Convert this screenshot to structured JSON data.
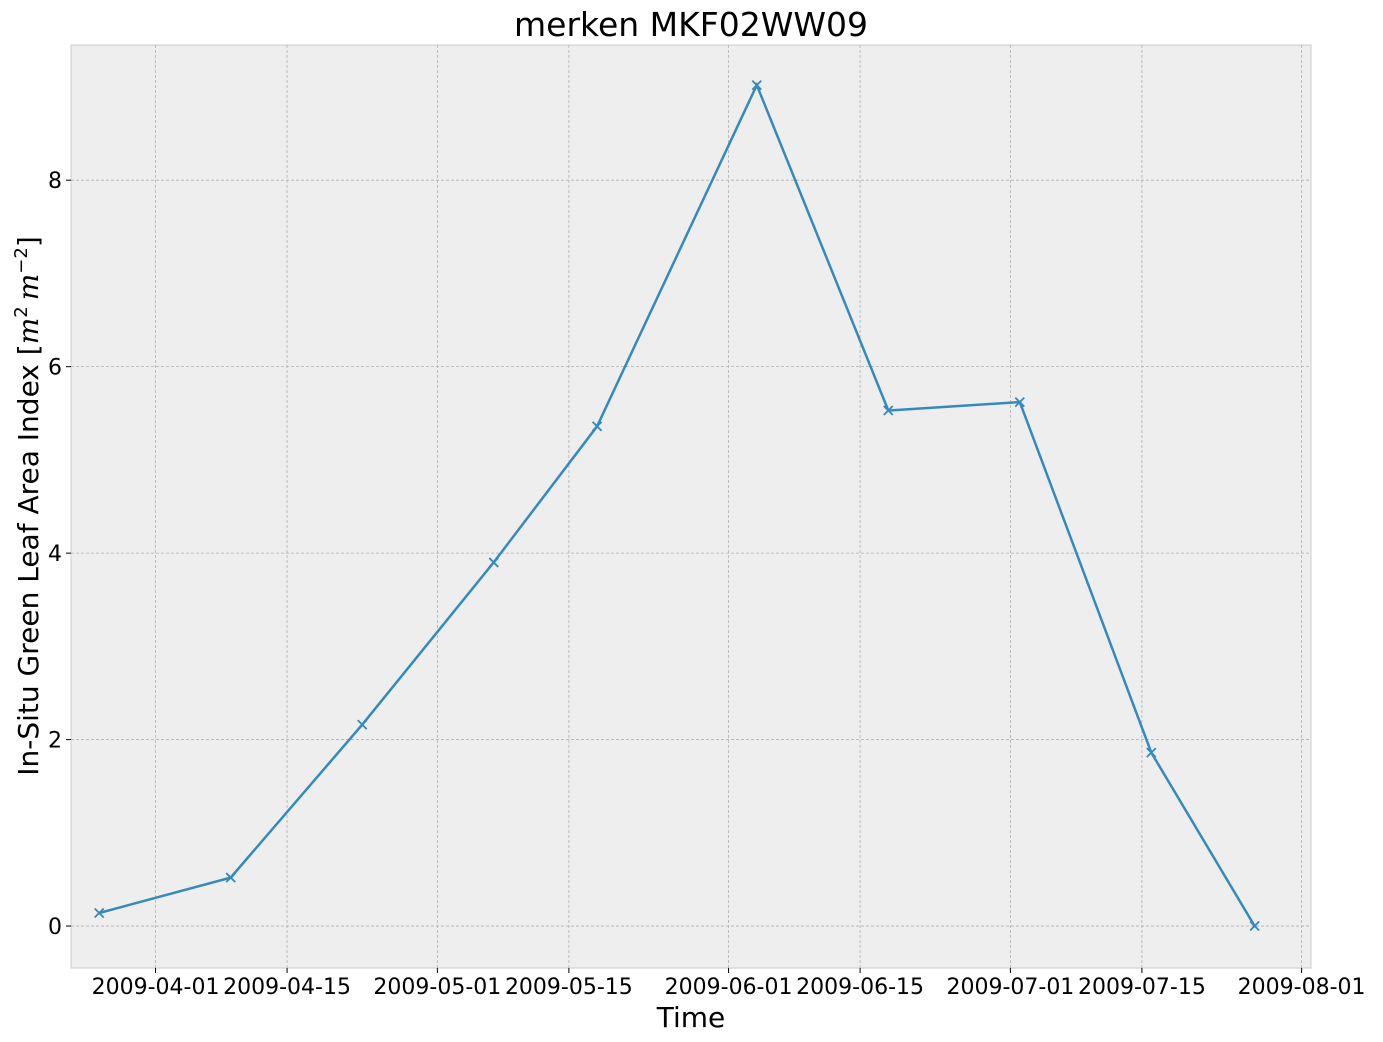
{
  "chart_data": {
    "type": "line",
    "title": "merken MKF02WW09",
    "xlabel": "Time",
    "ylabel": "In-Situ Green Leaf Area Index [m² m⁻²]",
    "ylabel_text": "In-Situ Green Leaf Area Index [",
    "ylabel_unit_m": "m",
    "ylabel_unit_exp1": "2",
    "ylabel_unit_exp2": "−2",
    "ylabel_close": "]",
    "xlim": [
      "2009-03-23",
      "2009-08-02"
    ],
    "ylim": [
      -0.45,
      9.45
    ],
    "x_ticks": [
      "2009-04-01",
      "2009-04-15",
      "2009-05-01",
      "2009-05-15",
      "2009-06-01",
      "2009-06-15",
      "2009-07-01",
      "2009-07-15",
      "2009-08-01"
    ],
    "y_ticks": [
      0,
      2,
      4,
      6,
      8
    ],
    "grid": true,
    "series": [
      {
        "x": [
          "2009-03-26",
          "2009-04-09",
          "2009-04-23",
          "2009-05-07",
          "2009-05-18",
          "2009-06-04",
          "2009-06-18",
          "2009-07-02",
          "2009-07-16",
          "2009-07-27"
        ],
        "values": [
          0.14,
          0.52,
          2.16,
          3.9,
          5.36,
          9.02,
          5.53,
          5.62,
          1.86,
          0.0
        ],
        "color": "#348abd",
        "marker": "x"
      }
    ]
  },
  "colors": {
    "background": "#eeeeee",
    "series": "#348abd",
    "grid": "#b0b0b0"
  }
}
